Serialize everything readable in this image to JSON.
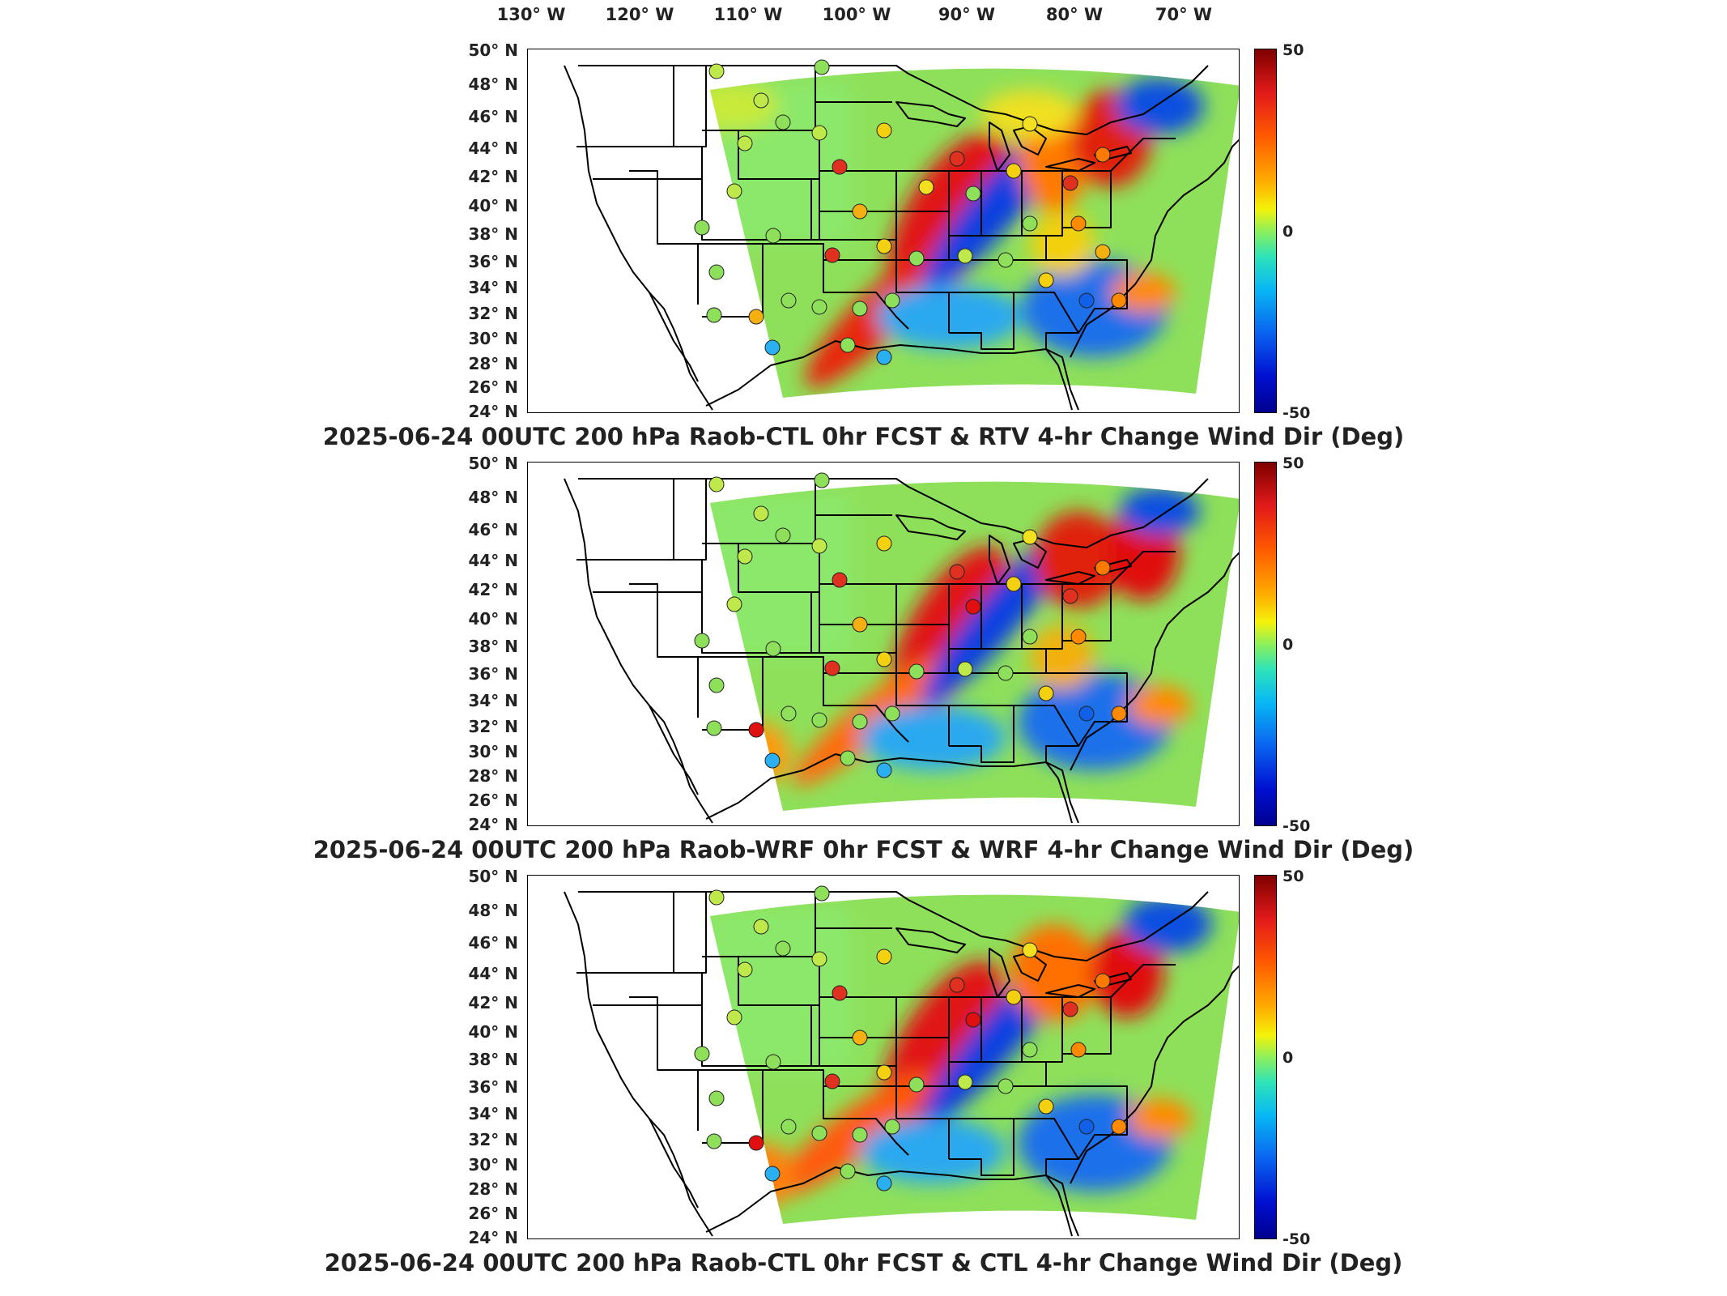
{
  "longitude_labels": [
    "130° W",
    "120° W",
    "110° W",
    "100° W",
    "90° W",
    "80° W",
    "70° W"
  ],
  "latitude_labels": [
    "50° N",
    "48° N",
    "46° N",
    "44° N",
    "42° N",
    "40° N",
    "38° N",
    "36° N",
    "34° N",
    "32° N",
    "30° N",
    "28° N",
    "26° N",
    "24° N"
  ],
  "colorbar": {
    "max_label": "50",
    "mid_label": "0",
    "min_label": "-50"
  },
  "panels": [
    {
      "caption": "2025-06-24 00UTC 200 hPa Raob-CTL 0hr FCST & RTV 4-hr Change Wind Dir (Deg)"
    },
    {
      "caption": "2025-06-24 00UTC 200 hPa Raob-WRF 0hr FCST & WRF 4-hr Change Wind Dir (Deg)"
    },
    {
      "caption": "2025-06-24 00UTC 200 hPa Raob-CTL 0hr FCST & CTL 4-hr Change Wind Dir (Deg)"
    }
  ],
  "colors": {
    "domain_green": "#8ee05a",
    "warm": "#e02020",
    "orange": "#ff8c00",
    "cool": "#1060e8",
    "cyan": "#10c8f0",
    "yellow": "#f0ea20"
  }
}
